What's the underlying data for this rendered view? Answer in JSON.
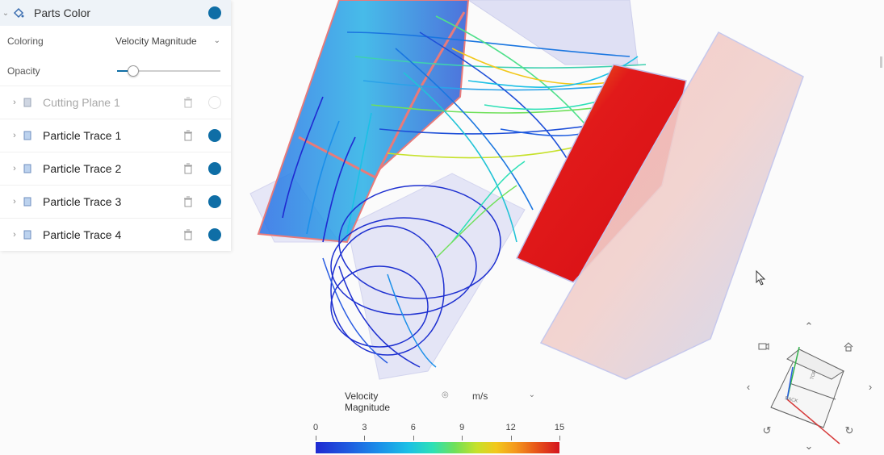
{
  "panel": {
    "header": {
      "label": "Parts Color",
      "color": "#0f6ea6"
    },
    "coloring": {
      "label": "Coloring",
      "value": "Velocity Magnitude"
    },
    "opacity": {
      "label": "Opacity",
      "value": 0.15
    },
    "items": [
      {
        "label": "Cutting Plane 1",
        "enabled": false
      },
      {
        "label": "Particle Trace 1",
        "enabled": true
      },
      {
        "label": "Particle Trace 2",
        "enabled": true
      },
      {
        "label": "Particle Trace 3",
        "enabled": true
      },
      {
        "label": "Particle Trace 4",
        "enabled": true
      }
    ]
  },
  "legend": {
    "title": "Velocity Magnitude",
    "unit": "m/s",
    "ticks": [
      "0",
      "3",
      "6",
      "9",
      "12",
      "15"
    ]
  },
  "colors": {
    "accent": "#0f6ea6",
    "header_bg": "#eef3f8",
    "box_outline": "#e87a7a"
  },
  "nav_widget": {
    "cube_labels": [
      "TOP",
      "BACK"
    ]
  }
}
